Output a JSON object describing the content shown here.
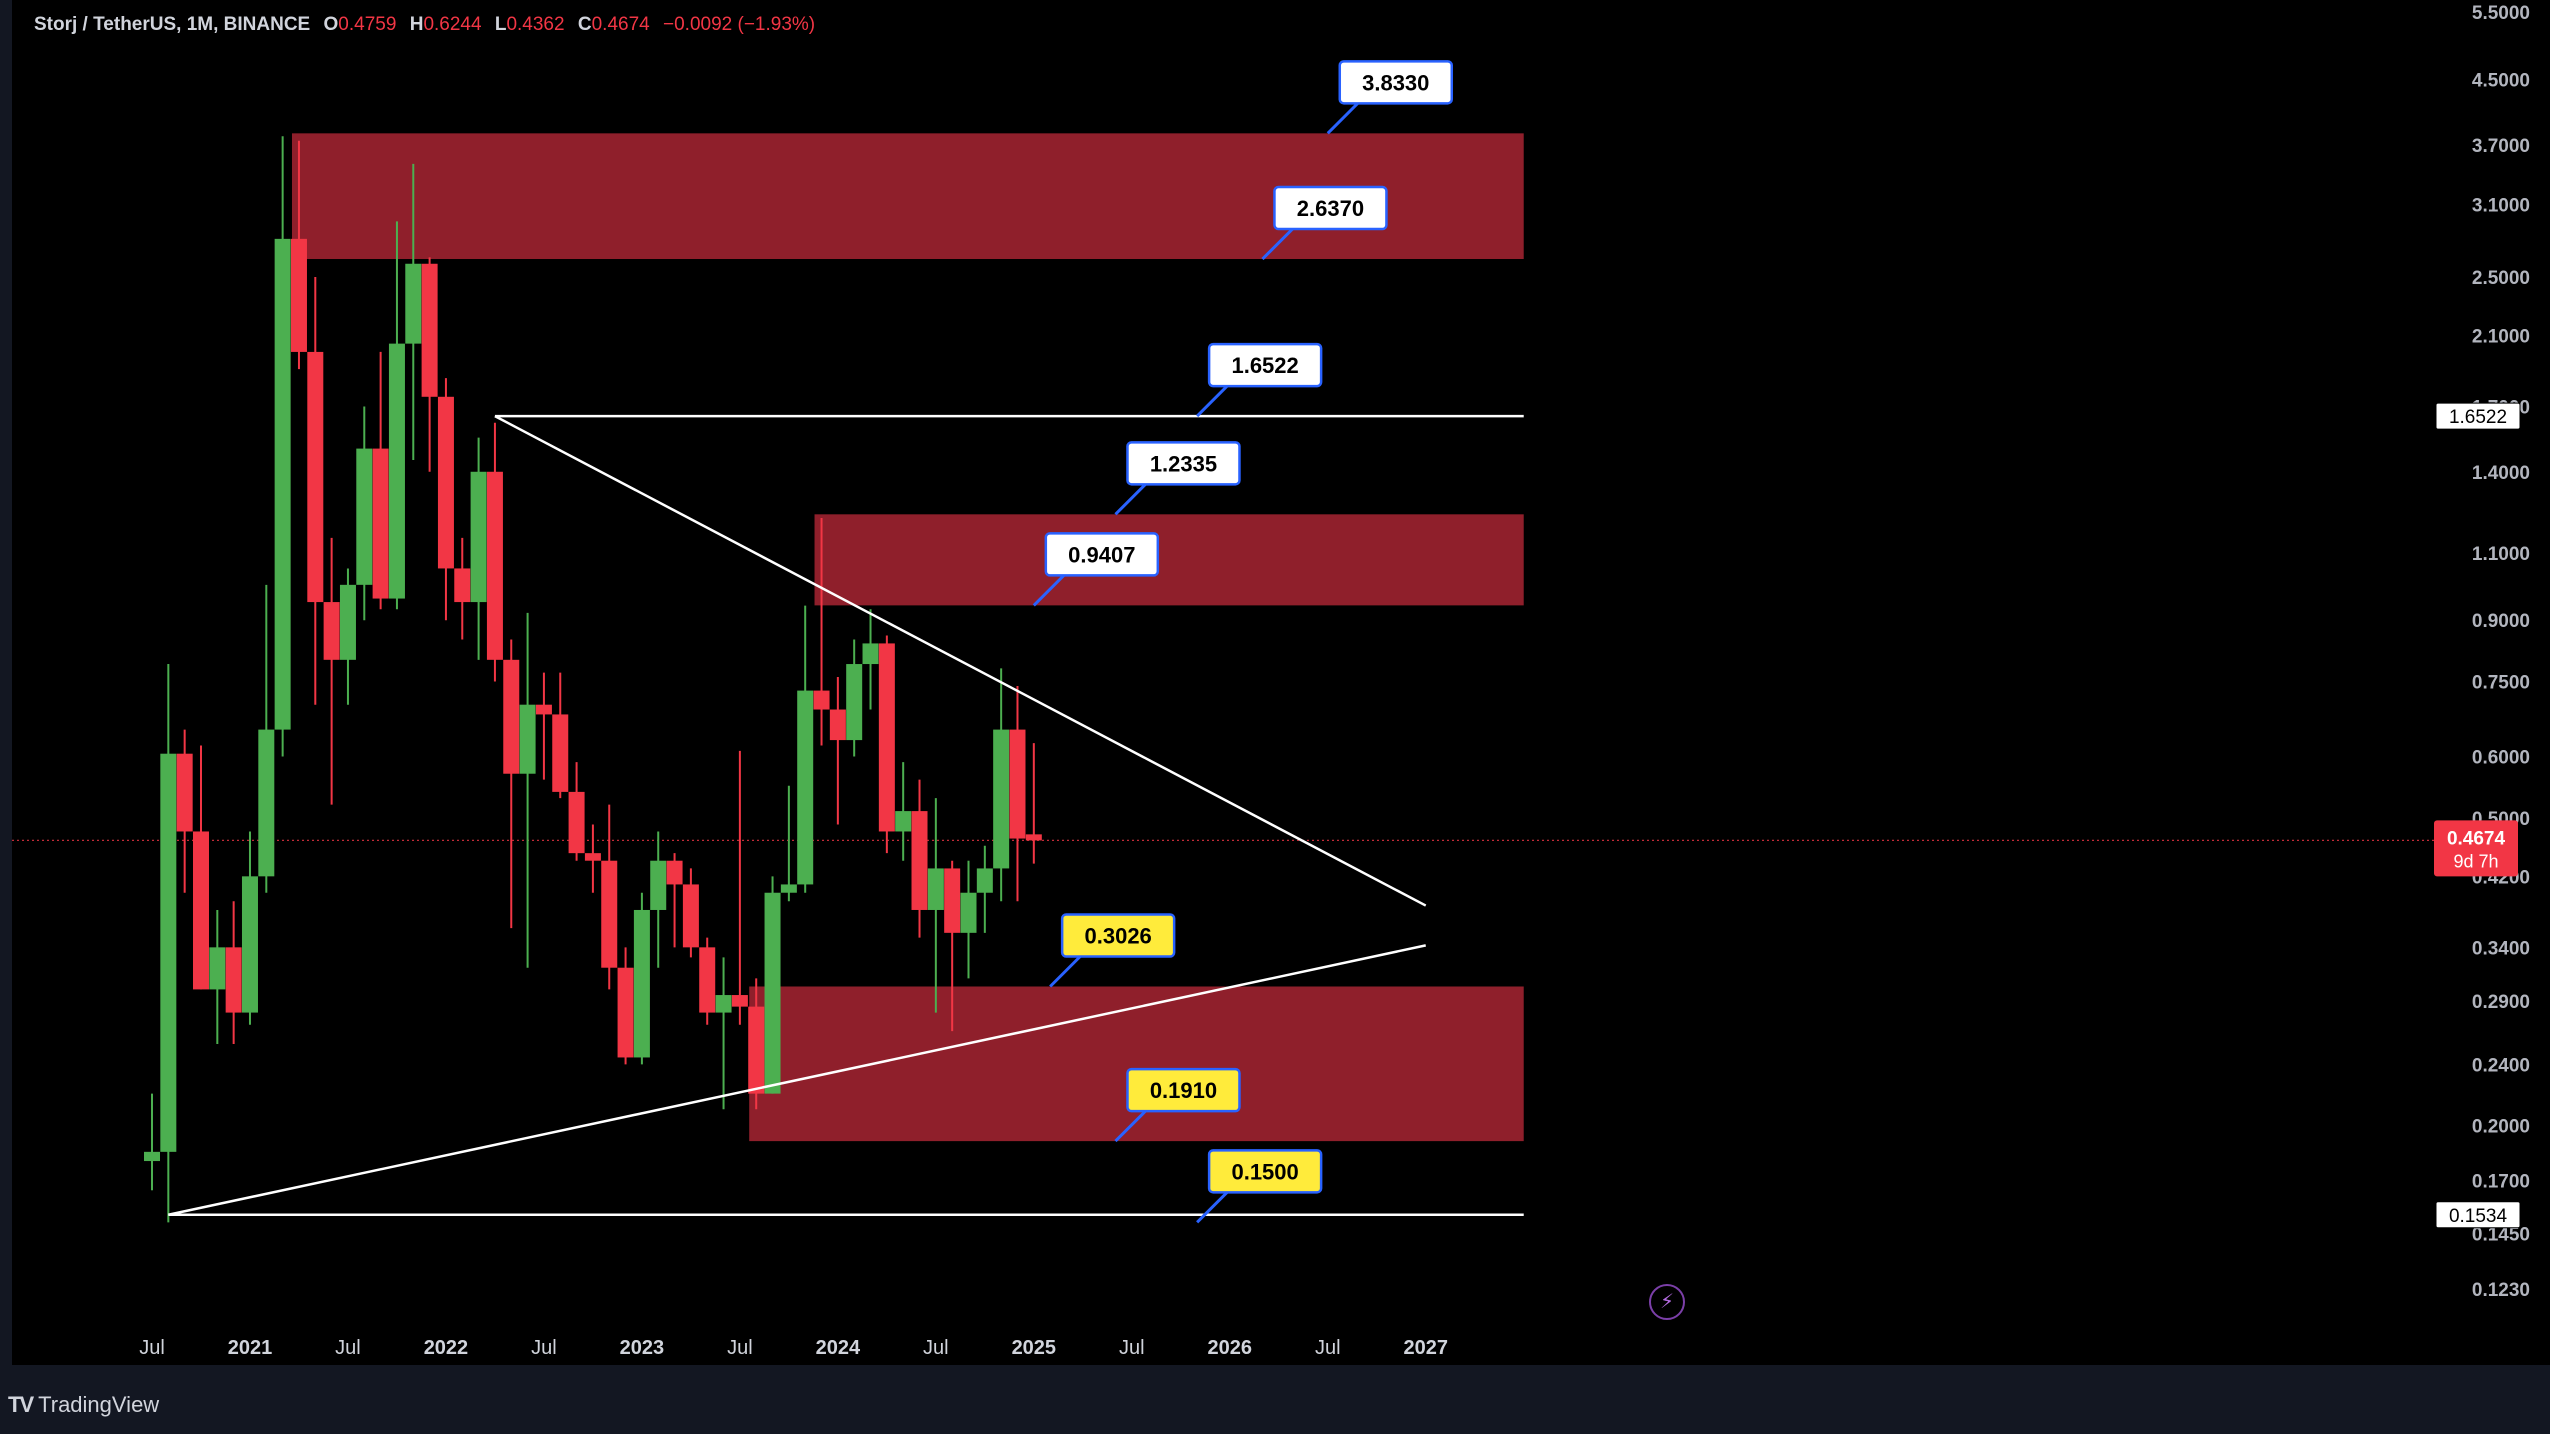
{
  "header": {
    "symbol": "Storj / TetherUS, 1M, BINANCE",
    "open_key": "O",
    "open": "0.4759",
    "high_key": "H",
    "high": "0.6244",
    "low_key": "L",
    "low": "0.4362",
    "close_key": "C",
    "close": "0.4674",
    "change": "−0.0092 (−1.93%)"
  },
  "footer": {
    "brand": "TradingView"
  },
  "colors": {
    "up": "#4caf50",
    "down": "#f23645",
    "zone": "#8f1f2b",
    "line": "#ffffff",
    "label_white": "#ffffff",
    "label_yellow": "#ffeb3b",
    "label_border": "#2962ff"
  },
  "chart_data": {
    "type": "candlestick",
    "scale": "log",
    "ylim": [
      0.11,
      5.6
    ],
    "price_ticks": [
      5.5,
      4.5,
      3.7,
      3.1,
      2.5,
      2.1,
      1.7,
      1.4,
      1.1,
      0.9,
      0.75,
      0.6,
      0.5,
      0.42,
      0.34,
      0.29,
      0.24,
      0.2,
      0.17,
      0.145,
      0.123
    ],
    "price_tick_labels": [
      "5.5000",
      "4.5000",
      "3.7000",
      "3.1000",
      "2.5000",
      "2.1000",
      "1.7000",
      "1.4000",
      "1.1000",
      "0.9000",
      "0.7500",
      "0.6000",
      "0.5000",
      "0.4200",
      "0.3400",
      "0.2900",
      "0.2400",
      "0.2000",
      "0.1700",
      "0.1450",
      "0.1230"
    ],
    "time_ticks": [
      {
        "label": "Jul",
        "date": "2020-07"
      },
      {
        "label": "2021",
        "date": "2021-01"
      },
      {
        "label": "Jul",
        "date": "2021-07"
      },
      {
        "label": "2022",
        "date": "2022-01"
      },
      {
        "label": "Jul",
        "date": "2022-07"
      },
      {
        "label": "2023",
        "date": "2023-01"
      },
      {
        "label": "Jul",
        "date": "2023-07"
      },
      {
        "label": "2024",
        "date": "2024-01"
      },
      {
        "label": "Jul",
        "date": "2024-07"
      },
      {
        "label": "2025",
        "date": "2025-01"
      },
      {
        "label": "Jul",
        "date": "2025-07"
      },
      {
        "label": "2026",
        "date": "2026-01"
      },
      {
        "label": "Jul",
        "date": "2026-07"
      },
      {
        "label": "2027",
        "date": "2027-01"
      }
    ],
    "candles": [
      {
        "t": "2020-07",
        "o": 0.18,
        "h": 0.22,
        "l": 0.165,
        "c": 0.185
      },
      {
        "t": "2020-08",
        "o": 0.185,
        "h": 0.79,
        "l": 0.15,
        "c": 0.605
      },
      {
        "t": "2020-09",
        "o": 0.605,
        "h": 0.65,
        "l": 0.4,
        "c": 0.48
      },
      {
        "t": "2020-10",
        "o": 0.48,
        "h": 0.62,
        "l": 0.3,
        "c": 0.3
      },
      {
        "t": "2020-11",
        "o": 0.3,
        "h": 0.38,
        "l": 0.255,
        "c": 0.34
      },
      {
        "t": "2020-12",
        "o": 0.34,
        "h": 0.39,
        "l": 0.255,
        "c": 0.28
      },
      {
        "t": "2021-01",
        "o": 0.28,
        "h": 0.48,
        "l": 0.27,
        "c": 0.42
      },
      {
        "t": "2021-02",
        "o": 0.42,
        "h": 1.0,
        "l": 0.4,
        "c": 0.65
      },
      {
        "t": "2021-03",
        "o": 0.65,
        "h": 3.8,
        "l": 0.6,
        "c": 2.8
      },
      {
        "t": "2021-04",
        "o": 2.8,
        "h": 3.75,
        "l": 1.9,
        "c": 2.0
      },
      {
        "t": "2021-05",
        "o": 2.0,
        "h": 2.5,
        "l": 0.7,
        "c": 0.95
      },
      {
        "t": "2021-06",
        "o": 0.95,
        "h": 1.15,
        "l": 0.52,
        "c": 0.8
      },
      {
        "t": "2021-07",
        "o": 0.8,
        "h": 1.05,
        "l": 0.7,
        "c": 1.0
      },
      {
        "t": "2021-08",
        "o": 1.0,
        "h": 1.7,
        "l": 0.9,
        "c": 1.5
      },
      {
        "t": "2021-09",
        "o": 1.5,
        "h": 2.0,
        "l": 0.93,
        "c": 0.96
      },
      {
        "t": "2021-10",
        "o": 0.96,
        "h": 2.95,
        "l": 0.93,
        "c": 2.05
      },
      {
        "t": "2021-11",
        "o": 2.05,
        "h": 3.5,
        "l": 1.45,
        "c": 2.6
      },
      {
        "t": "2021-12",
        "o": 2.6,
        "h": 2.65,
        "l": 1.4,
        "c": 1.75
      },
      {
        "t": "2022-01",
        "o": 1.75,
        "h": 1.85,
        "l": 0.9,
        "c": 1.05
      },
      {
        "t": "2022-02",
        "o": 1.05,
        "h": 1.15,
        "l": 0.85,
        "c": 0.95
      },
      {
        "t": "2022-03",
        "o": 0.95,
        "h": 1.55,
        "l": 0.8,
        "c": 1.4
      },
      {
        "t": "2022-04",
        "o": 1.4,
        "h": 1.62,
        "l": 0.75,
        "c": 0.8
      },
      {
        "t": "2022-05",
        "o": 0.8,
        "h": 0.85,
        "l": 0.36,
        "c": 0.57
      },
      {
        "t": "2022-06",
        "o": 0.57,
        "h": 0.92,
        "l": 0.32,
        "c": 0.7
      },
      {
        "t": "2022-07",
        "o": 0.7,
        "h": 0.77,
        "l": 0.56,
        "c": 0.68
      },
      {
        "t": "2022-08",
        "o": 0.68,
        "h": 0.77,
        "l": 0.53,
        "c": 0.54
      },
      {
        "t": "2022-09",
        "o": 0.54,
        "h": 0.59,
        "l": 0.44,
        "c": 0.45
      },
      {
        "t": "2022-10",
        "o": 0.45,
        "h": 0.49,
        "l": 0.4,
        "c": 0.44
      },
      {
        "t": "2022-11",
        "o": 0.44,
        "h": 0.52,
        "l": 0.3,
        "c": 0.32
      },
      {
        "t": "2022-12",
        "o": 0.32,
        "h": 0.34,
        "l": 0.24,
        "c": 0.245
      },
      {
        "t": "2023-01",
        "o": 0.245,
        "h": 0.4,
        "l": 0.24,
        "c": 0.38
      },
      {
        "t": "2023-02",
        "o": 0.38,
        "h": 0.48,
        "l": 0.32,
        "c": 0.44
      },
      {
        "t": "2023-03",
        "o": 0.44,
        "h": 0.45,
        "l": 0.34,
        "c": 0.41
      },
      {
        "t": "2023-04",
        "o": 0.41,
        "h": 0.43,
        "l": 0.33,
        "c": 0.34
      },
      {
        "t": "2023-05",
        "o": 0.34,
        "h": 0.35,
        "l": 0.27,
        "c": 0.28
      },
      {
        "t": "2023-06",
        "o": 0.28,
        "h": 0.33,
        "l": 0.21,
        "c": 0.295
      },
      {
        "t": "2023-07",
        "o": 0.295,
        "h": 0.61,
        "l": 0.27,
        "c": 0.285
      },
      {
        "t": "2023-08",
        "o": 0.285,
        "h": 0.31,
        "l": 0.21,
        "c": 0.22
      },
      {
        "t": "2023-09",
        "o": 0.22,
        "h": 0.42,
        "l": 0.22,
        "c": 0.4
      },
      {
        "t": "2023-10",
        "o": 0.4,
        "h": 0.55,
        "l": 0.39,
        "c": 0.41
      },
      {
        "t": "2023-11",
        "o": 0.41,
        "h": 0.94,
        "l": 0.4,
        "c": 0.73
      },
      {
        "t": "2023-12",
        "o": 0.73,
        "h": 1.22,
        "l": 0.62,
        "c": 0.69
      },
      {
        "t": "2024-01",
        "o": 0.69,
        "h": 0.76,
        "l": 0.49,
        "c": 0.63
      },
      {
        "t": "2024-02",
        "o": 0.63,
        "h": 0.85,
        "l": 0.6,
        "c": 0.79
      },
      {
        "t": "2024-03",
        "o": 0.79,
        "h": 0.93,
        "l": 0.69,
        "c": 0.84
      },
      {
        "t": "2024-04",
        "o": 0.84,
        "h": 0.86,
        "l": 0.45,
        "c": 0.48
      },
      {
        "t": "2024-05",
        "o": 0.48,
        "h": 0.59,
        "l": 0.44,
        "c": 0.51
      },
      {
        "t": "2024-06",
        "o": 0.51,
        "h": 0.56,
        "l": 0.35,
        "c": 0.38
      },
      {
        "t": "2024-07",
        "o": 0.38,
        "h": 0.53,
        "l": 0.28,
        "c": 0.43
      },
      {
        "t": "2024-08",
        "o": 0.43,
        "h": 0.44,
        "l": 0.265,
        "c": 0.355
      },
      {
        "t": "2024-09",
        "o": 0.355,
        "h": 0.44,
        "l": 0.31,
        "c": 0.4
      },
      {
        "t": "2024-10",
        "o": 0.4,
        "h": 0.46,
        "l": 0.355,
        "c": 0.43
      },
      {
        "t": "2024-11",
        "o": 0.43,
        "h": 0.78,
        "l": 0.39,
        "c": 0.65
      },
      {
        "t": "2024-12",
        "o": 0.65,
        "h": 0.74,
        "l": 0.39,
        "c": 0.47
      },
      {
        "t": "2025-01",
        "o": 0.4759,
        "h": 0.6244,
        "l": 0.4362,
        "c": 0.4674
      }
    ],
    "zones": [
      {
        "from": "2021-04",
        "to": "2027-07",
        "low": 2.637,
        "high": 3.833
      },
      {
        "from": "2023-12",
        "to": "2027-07",
        "low": 0.9407,
        "high": 1.2335
      },
      {
        "from": "2023-08",
        "to": "2027-07",
        "low": 0.191,
        "high": 0.3026
      }
    ],
    "trendlines": [
      {
        "from": {
          "t": "2022-04",
          "p": 1.6522
        },
        "to": {
          "t": "2027-07",
          "p": 1.6522
        }
      },
      {
        "from": {
          "t": "2020-08",
          "p": 0.1534
        },
        "to": {
          "t": "2027-07",
          "p": 0.1534
        }
      },
      {
        "from": {
          "t": "2022-04",
          "p": 1.6522
        },
        "to": {
          "t": "2027-01",
          "p": 0.385
        }
      },
      {
        "from": {
          "t": "2020-08",
          "p": 0.1534
        },
        "to": {
          "t": "2027-01",
          "p": 0.342
        }
      }
    ],
    "level_labels": [
      {
        "text": "3.8330",
        "p": 3.833,
        "anchor_t": "2026-07",
        "style": "white"
      },
      {
        "text": "2.6370",
        "p": 2.637,
        "anchor_t": "2026-03",
        "style": "white"
      },
      {
        "text": "1.6522",
        "p": 1.6522,
        "anchor_t": "2025-11",
        "style": "white"
      },
      {
        "text": "1.2335",
        "p": 1.2335,
        "anchor_t": "2025-06",
        "style": "white"
      },
      {
        "text": "0.9407",
        "p": 0.9407,
        "anchor_t": "2025-01",
        "style": "white"
      },
      {
        "text": "0.3026",
        "p": 0.3026,
        "anchor_t": "2025-02",
        "style": "yellow"
      },
      {
        "text": "0.1910",
        "p": 0.191,
        "anchor_t": "2025-06",
        "style": "yellow"
      },
      {
        "text": "0.1500",
        "p": 0.15,
        "anchor_t": "2025-11",
        "style": "yellow"
      }
    ],
    "axis_marks": [
      {
        "text": "1.6522",
        "p": 1.6522,
        "style": "line"
      },
      {
        "text": "0.1534",
        "p": 0.1534,
        "style": "line"
      },
      {
        "text": "0.4674",
        "p": 0.4674,
        "style": "last",
        "sub": "9d 7h"
      }
    ],
    "last_price": 0.4674
  }
}
